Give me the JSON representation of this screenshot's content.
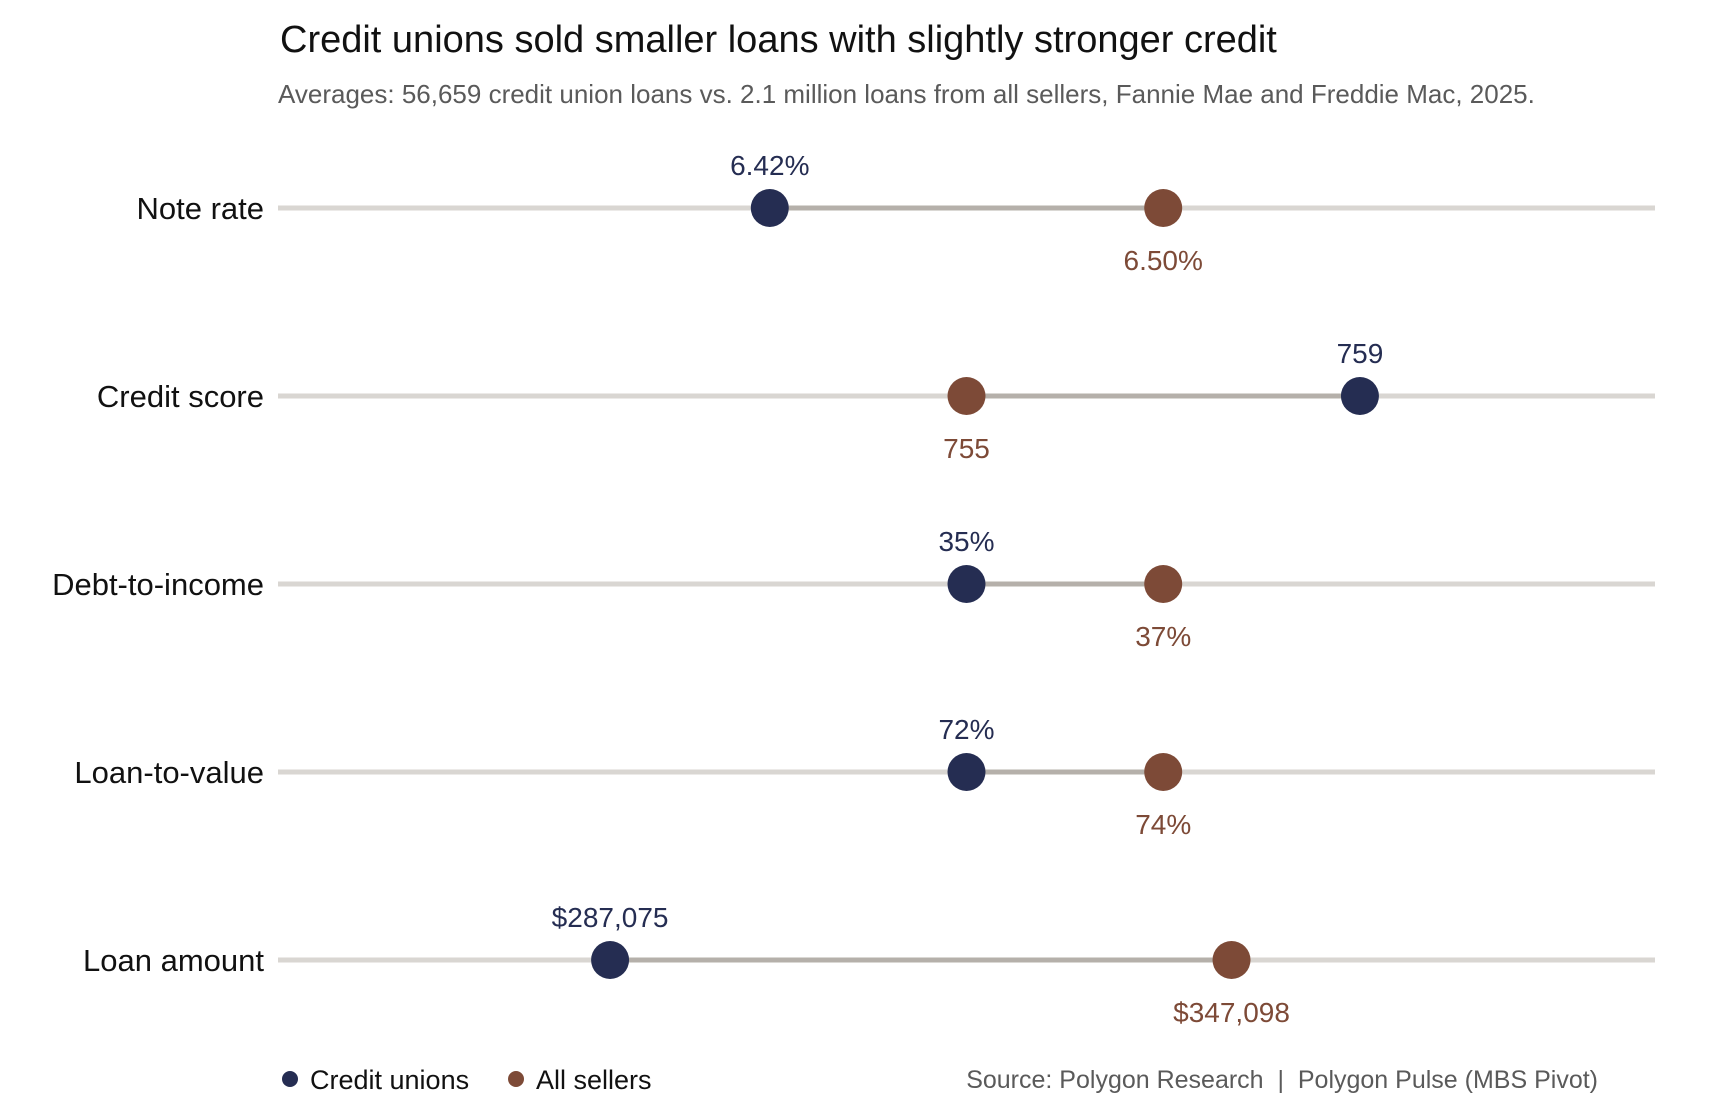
{
  "chart_data": {
    "type": "dumbbell",
    "title": "Credit unions sold smaller loans with slightly stronger credit",
    "subtitle": "Averages: 56,659 credit union loans vs. 2.1 million loans from all sellers, Fannie Mae and Freddie Mac, 2025.",
    "series": [
      {
        "name": "Credit unions",
        "color": "#252d52"
      },
      {
        "name": "All sellers",
        "color": "#7d4a37"
      }
    ],
    "rows": [
      {
        "category": "Note rate",
        "credit_unions": 6.42,
        "all_sellers": 6.5,
        "credit_unions_label": "6.42%",
        "all_sellers_label": "6.50%"
      },
      {
        "category": "Credit score",
        "credit_unions": 759,
        "all_sellers": 755,
        "credit_unions_label": "759",
        "all_sellers_label": "755"
      },
      {
        "category": "Debt-to-income",
        "credit_unions": 35,
        "all_sellers": 37,
        "credit_unions_label": "35%",
        "all_sellers_label": "37%"
      },
      {
        "category": "Loan-to-value",
        "credit_unions": 72,
        "all_sellers": 74,
        "credit_unions_label": "72%",
        "all_sellers_label": "74%"
      },
      {
        "category": "Loan amount",
        "credit_unions": 287075,
        "all_sellers": 347098,
        "credit_unions_label": "$287,075",
        "all_sellers_label": "$347,098"
      }
    ],
    "legend_position": "bottom-left",
    "grid": false,
    "source": "Source: Polygon Research  |  Polygon Pulse (MBS Pivot)"
  },
  "colors": {
    "track": "#d9d6d2",
    "connector": "#b5b0aa"
  }
}
